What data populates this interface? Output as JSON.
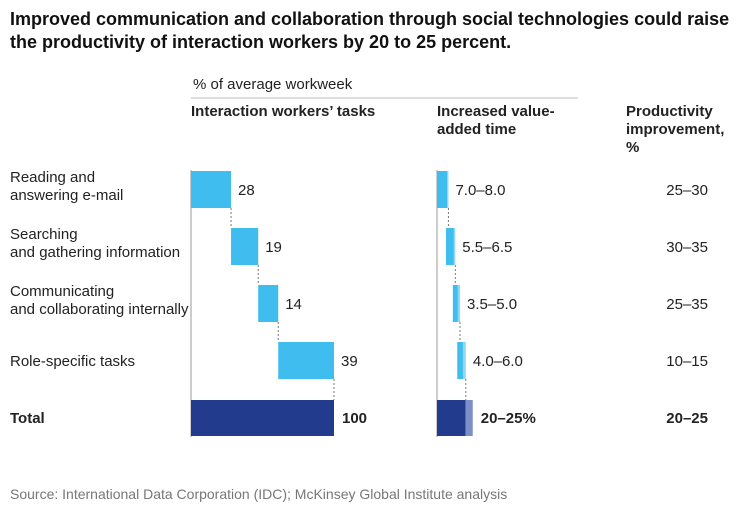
{
  "title": "Improved communication and collaboration through social technologies could raise the productivity of interaction workers by 20 to 25 percent.",
  "source": "Source: International Data Corporation (IDC); McKinsey Global Institute analysis",
  "colors": {
    "bar": "#3fbdee",
    "bar_light": "#8fd8f5",
    "total": "#233b8c",
    "total_light": "#7d8fc9"
  },
  "chart_data": {
    "type": "bar",
    "unit_label": "% of average workweek",
    "columns": {
      "tasks": "Interaction workers’ tasks",
      "value_added": "Increased value-added time",
      "productivity": "Productivity improvement, %"
    },
    "categories": [
      "Reading and answering e-mail",
      "Searching and gathering information",
      "Communicating and collaborating internally",
      "Role-specific tasks"
    ],
    "tasks": [
      28,
      19,
      14,
      39
    ],
    "tasks_labels": [
      "28",
      "19",
      "14",
      "39"
    ],
    "value_added": [
      [
        7.0,
        8.0
      ],
      [
        5.5,
        6.5
      ],
      [
        3.5,
        5.0
      ],
      [
        4.0,
        6.0
      ]
    ],
    "value_added_labels": [
      "7.0–8.0",
      "5.5–6.5",
      "3.5–5.0",
      "4.0–6.0"
    ],
    "productivity_labels": [
      "25–30",
      "30–35",
      "25–35",
      "10–15"
    ],
    "total": {
      "label": "Total",
      "tasks": 100,
      "tasks_label": "100",
      "value_added": [
        20,
        25
      ],
      "value_added_label": "20–25%",
      "productivity_label": "20–25"
    }
  }
}
